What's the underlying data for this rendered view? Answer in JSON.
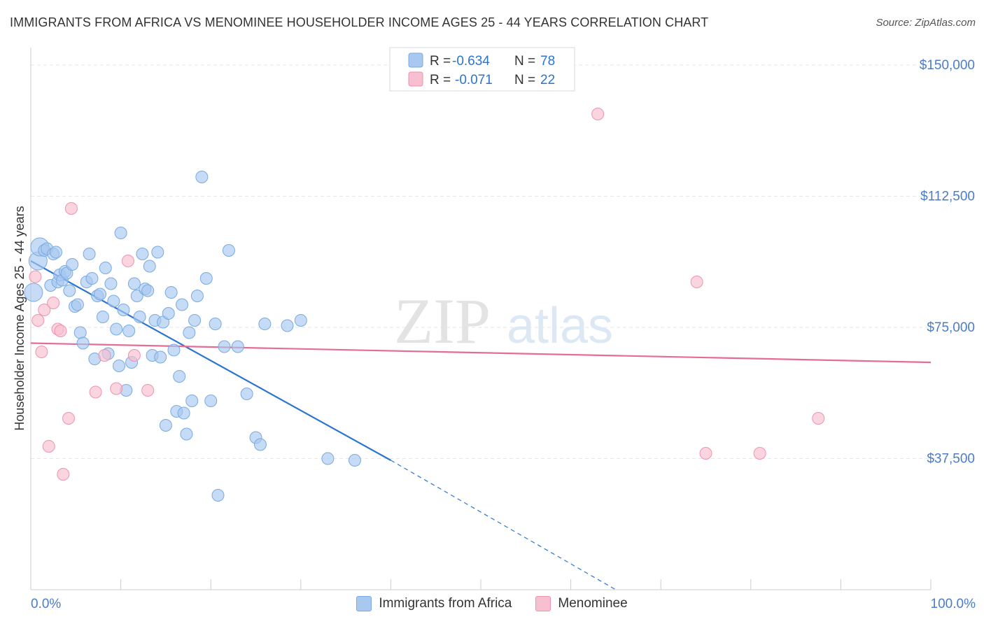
{
  "title": "IMMIGRANTS FROM AFRICA VS MENOMINEE HOUSEHOLDER INCOME AGES 25 - 44 YEARS CORRELATION CHART",
  "source": "Source: ZipAtlas.com",
  "watermark": {
    "zip": "ZIP",
    "atlas": "atlas"
  },
  "colors": {
    "blue_fill": "#a8c8f0",
    "blue_stroke": "#7aaae0",
    "blue_line": "#2b74d3",
    "pink_fill": "#f7bfd0",
    "pink_stroke": "#ee93b0",
    "pink_line": "#e46d95",
    "axis_label": "#4a7cc9",
    "grid": "#e6e6e6"
  },
  "legend_top": [
    {
      "r_label": "R =",
      "r_value": "-0.634",
      "n_label": "N =",
      "n_value": "78"
    },
    {
      "r_label": "R =",
      "r_value": "-0.071",
      "n_label": "N =",
      "n_value": "22"
    }
  ],
  "chart_data": {
    "type": "scatter",
    "title": "IMMIGRANTS FROM AFRICA VS MENOMINEE HOUSEHOLDER INCOME AGES 25 - 44 YEARS CORRELATION CHART",
    "xlabel": "",
    "ylabel": "Householder Income Ages 25 - 44 years",
    "xlim": [
      0,
      100
    ],
    "ylim": [
      0,
      153000
    ],
    "x_tick_labels": [
      "0.0%",
      "100.0%"
    ],
    "y_ticks": [
      37500,
      75000,
      112500,
      150000
    ],
    "y_tick_labels": [
      "$37,500",
      "$75,000",
      "$112,500",
      "$150,000"
    ],
    "grid": true,
    "legend_position": "top-center",
    "series": [
      {
        "name": "Immigrants from Africa",
        "color": "blue",
        "points": [
          [
            0.3,
            85000
          ],
          [
            0.8,
            94000
          ],
          [
            1,
            98000
          ],
          [
            1.5,
            97000
          ],
          [
            1.8,
            97500
          ],
          [
            2.2,
            87000
          ],
          [
            2.5,
            96000
          ],
          [
            2.8,
            96500
          ],
          [
            3,
            88000
          ],
          [
            3.2,
            90000
          ],
          [
            3.5,
            88500
          ],
          [
            3.8,
            91000
          ],
          [
            4,
            90500
          ],
          [
            4.3,
            85500
          ],
          [
            4.6,
            93000
          ],
          [
            4.9,
            81000
          ],
          [
            5.2,
            81500
          ],
          [
            5.5,
            73500
          ],
          [
            5.8,
            70500
          ],
          [
            6.2,
            88000
          ],
          [
            6.5,
            96000
          ],
          [
            6.8,
            89000
          ],
          [
            7.1,
            66000
          ],
          [
            7.4,
            84000
          ],
          [
            7.7,
            84500
          ],
          [
            8,
            78000
          ],
          [
            8.3,
            92000
          ],
          [
            8.6,
            67500
          ],
          [
            8.9,
            87500
          ],
          [
            9.2,
            82500
          ],
          [
            9.5,
            74500
          ],
          [
            9.8,
            64000
          ],
          [
            10,
            102000
          ],
          [
            10.3,
            80000
          ],
          [
            10.6,
            57000
          ],
          [
            10.9,
            74000
          ],
          [
            11.2,
            65000
          ],
          [
            11.5,
            87500
          ],
          [
            11.8,
            84000
          ],
          [
            12.1,
            78000
          ],
          [
            12.4,
            96000
          ],
          [
            12.7,
            86000
          ],
          [
            13,
            85500
          ],
          [
            13.2,
            92500
          ],
          [
            13.5,
            67000
          ],
          [
            13.8,
            77000
          ],
          [
            14.1,
            96500
          ],
          [
            14.4,
            66500
          ],
          [
            14.7,
            76500
          ],
          [
            15,
            47000
          ],
          [
            15.3,
            79000
          ],
          [
            15.6,
            85000
          ],
          [
            15.9,
            68500
          ],
          [
            16.2,
            51000
          ],
          [
            16.5,
            61000
          ],
          [
            16.8,
            81500
          ],
          [
            17,
            50500
          ],
          [
            17.3,
            44500
          ],
          [
            17.6,
            73500
          ],
          [
            17.9,
            54000
          ],
          [
            18.2,
            77000
          ],
          [
            18.5,
            84000
          ],
          [
            19,
            118000
          ],
          [
            19.5,
            89000
          ],
          [
            20,
            54000
          ],
          [
            20.5,
            76000
          ],
          [
            20.8,
            27000
          ],
          [
            21.5,
            69500
          ],
          [
            22,
            97000
          ],
          [
            23,
            69500
          ],
          [
            24,
            56000
          ],
          [
            25,
            43500
          ],
          [
            25.5,
            41500
          ],
          [
            26,
            76000
          ],
          [
            28.5,
            75500
          ],
          [
            30,
            77000
          ],
          [
            33,
            37500
          ],
          [
            36,
            37000
          ]
        ]
      },
      {
        "name": "Menominee",
        "color": "pink",
        "points": [
          [
            0.5,
            89500
          ],
          [
            0.8,
            77000
          ],
          [
            1.2,
            68000
          ],
          [
            1.5,
            80000
          ],
          [
            2,
            41000
          ],
          [
            2.5,
            82000
          ],
          [
            3,
            74500
          ],
          [
            3.3,
            74000
          ],
          [
            3.6,
            33000
          ],
          [
            4.2,
            49000
          ],
          [
            4.5,
            109000
          ],
          [
            7.2,
            56500
          ],
          [
            8.2,
            67000
          ],
          [
            9.5,
            57500
          ],
          [
            10.8,
            94000
          ],
          [
            11.5,
            67000
          ],
          [
            13,
            57000
          ],
          [
            63,
            136000
          ],
          [
            74,
            88000
          ],
          [
            75,
            39000
          ],
          [
            81,
            39000
          ],
          [
            87.5,
            49000
          ]
        ]
      }
    ],
    "trend_lines": [
      {
        "series": "Immigrants from Africa",
        "from": [
          0,
          94000
        ],
        "to": [
          40,
          37000
        ],
        "dashed_to": [
          65,
          0
        ]
      },
      {
        "series": "Menominee",
        "from": [
          0,
          70500
        ],
        "to": [
          100,
          65000
        ]
      }
    ],
    "x_axis_ticks": [
      0,
      10,
      20,
      30,
      40,
      50,
      60,
      70,
      80,
      90,
      100
    ]
  }
}
